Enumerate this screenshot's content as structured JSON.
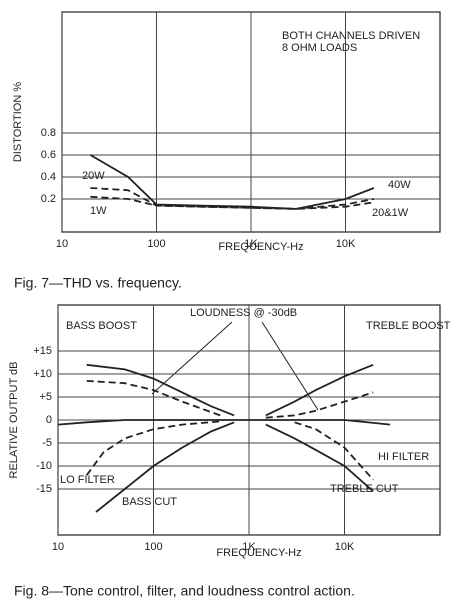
{
  "chart_data": [
    {
      "type": "line",
      "log_x": true,
      "grid": true,
      "annotations": [
        "BOTH CHANNELS DRIVEN",
        "8 OHM LOADS",
        "20&1W"
      ],
      "xlabel": "FREQUENCY-Hz",
      "ylabel": "DISTORTION %",
      "caption": "Fig. 7—THD vs. frequency.",
      "xlim": [
        10,
        100000
      ],
      "xticks": [
        10,
        100,
        {
          "value": 1000,
          "label": "1K"
        },
        {
          "value": 10000,
          "label": "10K"
        }
      ],
      "ylim": [
        -0.1,
        1.9
      ],
      "yticks": [
        0.2,
        0.4,
        0.6,
        0.8
      ],
      "series": [
        {
          "name": "40W",
          "color": "#222",
          "line_style": "solid",
          "x": [
            20,
            50,
            100,
            300,
            1000,
            3000,
            10000,
            20000
          ],
          "values": [
            0.6,
            0.4,
            0.15,
            0.14,
            0.13,
            0.11,
            0.2,
            0.3
          ]
        },
        {
          "name": "20W",
          "color": "#222",
          "line_style": "dashed",
          "x": [
            20,
            50,
            100,
            300,
            1000,
            3000,
            10000,
            20000
          ],
          "values": [
            0.3,
            0.28,
            0.14,
            0.13,
            0.12,
            0.11,
            0.15,
            0.2
          ]
        },
        {
          "name": "1W",
          "color": "#222",
          "line_style": "dashed",
          "x": [
            20,
            50,
            100,
            300,
            1000,
            3000,
            10000,
            20000
          ],
          "values": [
            0.22,
            0.2,
            0.14,
            0.13,
            0.12,
            0.11,
            0.13,
            0.17
          ]
        }
      ]
    },
    {
      "type": "line",
      "log_x": true,
      "grid": true,
      "annotations": [
        "LOUDNESS @ -30dB"
      ],
      "xlabel": "FREQUENCY-Hz",
      "ylabel": "RELATIVE OUTPUT dB",
      "caption": "Fig. 8—Tone control, filter, and loudness control action.",
      "xlim": [
        10,
        100000
      ],
      "xticks": [
        10,
        100,
        {
          "value": 1000,
          "label": "1K"
        },
        {
          "value": 10000,
          "label": "10K"
        }
      ],
      "ylim": [
        -25,
        25
      ],
      "yticks": [
        {
          "value": 15,
          "label": "+15"
        },
        {
          "value": 10,
          "label": "+10"
        },
        {
          "value": 5,
          "label": "+5"
        },
        0,
        -5,
        -10,
        -15
      ],
      "series": [
        {
          "name": "BASS BOOST",
          "color": "#222",
          "line_style": "solid",
          "x": [
            20,
            50,
            100,
            200,
            400,
            700
          ],
          "values": [
            12,
            11,
            9,
            6,
            3,
            1
          ]
        },
        {
          "color": "#222",
          "line_style": "dashed",
          "x": [
            20,
            50,
            100,
            200,
            500
          ],
          "values": [
            8.5,
            8,
            6.5,
            4,
            1
          ]
        },
        {
          "name": "BASS CUT",
          "color": "#222",
          "line_style": "solid",
          "x": [
            25,
            50,
            100,
            200,
            400,
            700
          ],
          "values": [
            -20,
            -15,
            -10,
            -6,
            -2.5,
            -0.5
          ]
        },
        {
          "name": "LO FILTER",
          "color": "#222",
          "line_style": "dashed",
          "x": [
            20,
            30,
            50,
            100,
            200,
            500
          ],
          "values": [
            -12,
            -7,
            -4,
            -2,
            -1,
            -0.3
          ]
        },
        {
          "color": "#222",
          "line_style": "solid",
          "x": [
            10,
            20,
            50,
            1000,
            10000,
            30000
          ],
          "values": [
            -1,
            -0.5,
            0,
            0,
            0,
            -1
          ]
        },
        {
          "name": "TREBLE BOOST",
          "color": "#222",
          "line_style": "solid",
          "x": [
            1500,
            3000,
            5000,
            10000,
            20000
          ],
          "values": [
            1,
            4,
            6.5,
            9.5,
            12
          ]
        },
        {
          "color": "#222",
          "line_style": "dashed",
          "x": [
            1500,
            3000,
            5000,
            10000,
            20000
          ],
          "values": [
            0.5,
            1,
            2,
            4,
            6
          ]
        },
        {
          "name": "TREBLE CUT",
          "color": "#222",
          "line_style": "solid",
          "x": [
            1500,
            3000,
            5000,
            10000,
            20000
          ],
          "values": [
            -1,
            -4,
            -6.5,
            -10,
            -15.5
          ]
        },
        {
          "name": "HI FILTER",
          "color": "#222",
          "line_style": "dashed",
          "x": [
            3000,
            5000,
            10000,
            20000
          ],
          "values": [
            -0.5,
            -2,
            -6,
            -13
          ]
        }
      ]
    }
  ]
}
